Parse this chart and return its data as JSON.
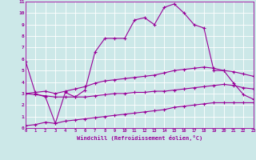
{
  "xlabel": "Windchill (Refroidissement éolien,°C)",
  "bg_color": "#cce8e8",
  "grid_color": "#ffffff",
  "line_color": "#990099",
  "xlim": [
    0,
    23
  ],
  "ylim": [
    0,
    11
  ],
  "xticks": [
    0,
    1,
    2,
    3,
    4,
    5,
    6,
    7,
    8,
    9,
    10,
    11,
    12,
    13,
    14,
    15,
    16,
    17,
    18,
    19,
    20,
    21,
    22,
    23
  ],
  "yticks": [
    0,
    1,
    2,
    3,
    4,
    5,
    6,
    7,
    8,
    9,
    10,
    11
  ],
  "series": {
    "main": {
      "x": [
        0,
        1,
        2,
        3,
        4,
        5,
        6,
        7,
        8,
        9,
        10,
        11,
        12,
        13,
        14,
        15,
        16,
        17,
        18,
        19,
        20,
        21,
        22,
        23
      ],
      "y": [
        5.8,
        3.0,
        2.7,
        0.4,
        3.1,
        2.7,
        3.3,
        6.6,
        7.8,
        7.8,
        7.8,
        9.4,
        9.6,
        9.0,
        10.5,
        10.8,
        10.0,
        9.0,
        8.7,
        5.0,
        5.0,
        3.9,
        2.9,
        2.5
      ]
    },
    "line2": {
      "x": [
        0,
        1,
        2,
        3,
        4,
        5,
        6,
        7,
        8,
        9,
        10,
        11,
        12,
        13,
        14,
        15,
        16,
        17,
        18,
        19,
        20,
        21,
        22,
        23
      ],
      "y": [
        3.0,
        3.1,
        3.2,
        3.0,
        3.2,
        3.4,
        3.6,
        3.9,
        4.1,
        4.2,
        4.3,
        4.4,
        4.5,
        4.6,
        4.8,
        5.0,
        5.1,
        5.2,
        5.3,
        5.2,
        5.0,
        4.9,
        4.7,
        4.5
      ]
    },
    "line3": {
      "x": [
        0,
        1,
        2,
        3,
        4,
        5,
        6,
        7,
        8,
        9,
        10,
        11,
        12,
        13,
        14,
        15,
        16,
        17,
        18,
        19,
        20,
        21,
        22,
        23
      ],
      "y": [
        3.0,
        2.9,
        2.8,
        2.7,
        2.7,
        2.7,
        2.7,
        2.8,
        2.9,
        3.0,
        3.0,
        3.1,
        3.1,
        3.2,
        3.2,
        3.3,
        3.4,
        3.5,
        3.6,
        3.7,
        3.8,
        3.7,
        3.5,
        3.4
      ]
    },
    "line4": {
      "x": [
        0,
        1,
        2,
        3,
        4,
        5,
        6,
        7,
        8,
        9,
        10,
        11,
        12,
        13,
        14,
        15,
        16,
        17,
        18,
        19,
        20,
        21,
        22,
        23
      ],
      "y": [
        0.2,
        0.3,
        0.5,
        0.4,
        0.6,
        0.7,
        0.8,
        0.9,
        1.0,
        1.1,
        1.2,
        1.3,
        1.4,
        1.5,
        1.6,
        1.8,
        1.9,
        2.0,
        2.1,
        2.2,
        2.2,
        2.2,
        2.2,
        2.2
      ]
    }
  }
}
